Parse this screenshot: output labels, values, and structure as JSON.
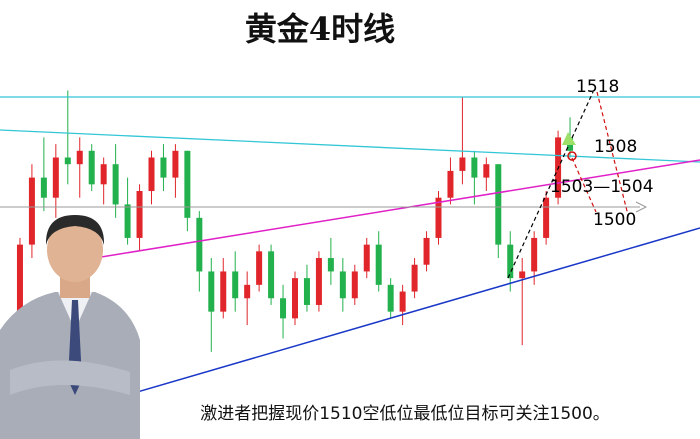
{
  "chart_data": {
    "type": "candlestick",
    "title": "黄金4时线",
    "caption": "激进者把握现价1510空低位最低位目标可关注1500。",
    "annotations": [
      "1518",
      "1508",
      "1503—1504",
      "1500"
    ],
    "up_color": "#e0262a",
    "down_color": "#22b14c",
    "ylim": [
      1467,
      1532.5
    ],
    "open": [
      1480,
      1483,
      1496,
      1506,
      1503,
      1509,
      1508,
      1510,
      1505,
      1508,
      1502,
      1497,
      1504,
      1509,
      1506,
      1510,
      1500,
      1492,
      1486,
      1492,
      1488,
      1490,
      1495,
      1488,
      1485,
      1491,
      1487,
      1494,
      1492,
      1488,
      1492,
      1496,
      1490,
      1486,
      1489,
      1493,
      1497,
      1503,
      1507,
      1509,
      1506,
      1508,
      1496,
      1491,
      1492,
      1497,
      1503,
      1512
    ],
    "high": [
      1484,
      1497,
      1508,
      1512,
      1511,
      1519,
      1512,
      1511,
      1509,
      1511,
      1506,
      1505,
      1510,
      1511,
      1511,
      1510,
      1501,
      1494,
      1494,
      1495,
      1492,
      1496,
      1496,
      1490,
      1492,
      1493,
      1495,
      1497,
      1494,
      1493,
      1497,
      1498,
      1491,
      1490,
      1494,
      1498,
      1504,
      1509,
      1518,
      1510,
      1509,
      1508,
      1498,
      1494,
      1498,
      1504,
      1513,
      1515
    ],
    "low": [
      1474,
      1482,
      1494,
      1501,
      1500,
      1505,
      1503,
      1504,
      1502,
      1500,
      1496,
      1495,
      1502,
      1504,
      1503,
      1498,
      1489,
      1480,
      1485,
      1486,
      1484,
      1489,
      1487,
      1482,
      1484,
      1486,
      1486,
      1490,
      1486,
      1487,
      1491,
      1489,
      1485,
      1484,
      1488,
      1492,
      1496,
      1502,
      1505,
      1502,
      1504,
      1494,
      1489,
      1481,
      1490,
      1496,
      1502,
      1509
    ],
    "close": [
      1483,
      1496,
      1506,
      1503,
      1509,
      1508,
      1510,
      1505,
      1508,
      1502,
      1497,
      1504,
      1509,
      1506,
      1510,
      1500,
      1492,
      1486,
      1492,
      1488,
      1490,
      1495,
      1488,
      1485,
      1491,
      1487,
      1494,
      1492,
      1488,
      1492,
      1496,
      1490,
      1486,
      1489,
      1493,
      1497,
      1503,
      1507,
      1509,
      1506,
      1508,
      1496,
      1491,
      1492,
      1497,
      1503,
      1512,
      1510
    ]
  }
}
